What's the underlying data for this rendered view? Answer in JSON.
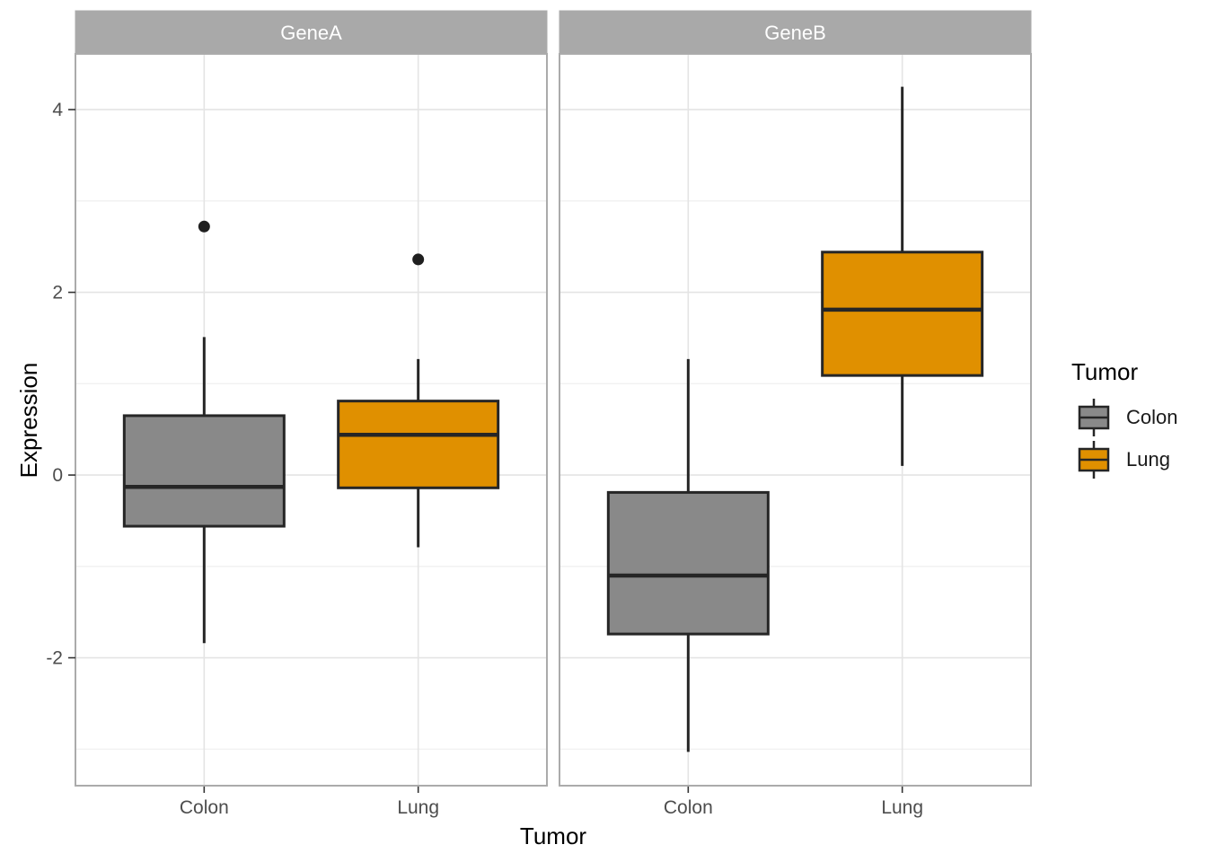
{
  "chart_data": {
    "type": "boxplot",
    "facet_variable": "Gene",
    "xlabel": "Tumor",
    "ylabel": "Expression",
    "categories": [
      "Colon",
      "Lung"
    ],
    "y_ticks": [
      4,
      2,
      0,
      -2
    ],
    "y_minor_ticks": [
      3,
      1,
      -1,
      -3
    ],
    "ylim": [
      -3.4,
      4.61
    ],
    "grid": true,
    "facets": [
      {
        "label": "GeneA",
        "boxes": [
          {
            "category": "Colon",
            "group": "Colon",
            "whisker_low": -1.84,
            "q1": -0.56,
            "median": -0.13,
            "q3": 0.65,
            "whisker_high": 1.51,
            "outliers": [
              2.72
            ]
          },
          {
            "category": "Lung",
            "group": "Lung",
            "whisker_low": -0.79,
            "q1": -0.14,
            "median": 0.44,
            "q3": 0.81,
            "whisker_high": 1.27,
            "outliers": [
              2.36
            ]
          }
        ]
      },
      {
        "label": "GeneB",
        "boxes": [
          {
            "category": "Colon",
            "group": "Colon",
            "whisker_low": -3.03,
            "q1": -1.74,
            "median": -1.1,
            "q3": -0.19,
            "whisker_high": 1.27,
            "outliers": []
          },
          {
            "category": "Lung",
            "group": "Lung",
            "whisker_low": 0.1,
            "q1": 1.09,
            "median": 1.81,
            "q3": 2.44,
            "whisker_high": 4.25,
            "outliers": []
          }
        ]
      }
    ],
    "legend": {
      "title": "Tumor",
      "position": "right",
      "entries": [
        {
          "label": "Colon",
          "fill": "#898989"
        },
        {
          "label": "Lung",
          "fill": "#E09000"
        }
      ]
    }
  },
  "colors": {
    "box_outline": "#262626",
    "median_line": "#262626",
    "whisker": "#262626",
    "outlier": "#1F1F1F",
    "strip_bg": "#A9A9A9",
    "strip_text": "#FFFFFF",
    "panel_bg": "#FFFFFF",
    "panel_border": "#ABABAB",
    "grid_major": "#E4E4E4",
    "grid_minor": "#F1F1F1",
    "axis_text": "#4D4D4D",
    "tick_mark": "#333333"
  }
}
